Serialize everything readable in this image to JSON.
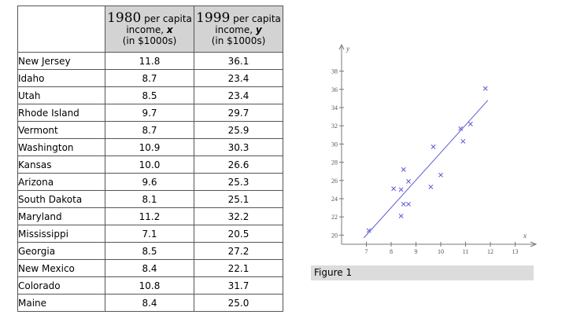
{
  "table": {
    "header": {
      "col1": {
        "year": "1980",
        "rest1": " per capita",
        "line2": "income, ",
        "var": "x",
        "line3": "(in $1000s)"
      },
      "col2": {
        "year": "1999",
        "rest1": " per capita",
        "line2": "income, ",
        "var": "y",
        "line3": "(in $1000s)"
      }
    },
    "rows": [
      {
        "state": "New Jersey",
        "x": "11.8",
        "y": "36.1"
      },
      {
        "state": "Idaho",
        "x": "8.7",
        "y": "23.4"
      },
      {
        "state": "Utah",
        "x": "8.5",
        "y": "23.4"
      },
      {
        "state": "Rhode Island",
        "x": "9.7",
        "y": "29.7"
      },
      {
        "state": "Vermont",
        "x": "8.7",
        "y": "25.9"
      },
      {
        "state": "Washington",
        "x": "10.9",
        "y": "30.3"
      },
      {
        "state": "Kansas",
        "x": "10.0",
        "y": "26.6"
      },
      {
        "state": "Arizona",
        "x": "9.6",
        "y": "25.3"
      },
      {
        "state": "South Dakota",
        "x": "8.1",
        "y": "25.1"
      },
      {
        "state": "Maryland",
        "x": "11.2",
        "y": "32.2"
      },
      {
        "state": "Mississippi",
        "x": "7.1",
        "y": "20.5"
      },
      {
        "state": "Georgia",
        "x": "8.5",
        "y": "27.2"
      },
      {
        "state": "New Mexico",
        "x": "8.4",
        "y": "22.1"
      },
      {
        "state": "Colorado",
        "x": "10.8",
        "y": "31.7"
      },
      {
        "state": "Maine",
        "x": "8.4",
        "y": "25.0"
      }
    ]
  },
  "chart_data": {
    "type": "scatter",
    "title": "",
    "xlabel": "x",
    "ylabel": "y",
    "xlim": [
      6,
      14
    ],
    "ylim": [
      18,
      39
    ],
    "xticks": [
      7,
      8,
      9,
      10,
      11,
      12,
      13
    ],
    "yticks": [
      20,
      22,
      24,
      26,
      28,
      30,
      32,
      34,
      36,
      38
    ],
    "series": [
      {
        "name": "states",
        "marker": "x",
        "color": "#5b5bd6",
        "x": [
          11.8,
          8.7,
          8.5,
          9.7,
          8.7,
          10.9,
          10.0,
          9.6,
          8.1,
          11.2,
          7.1,
          8.5,
          8.4,
          10.8,
          8.4
        ],
        "y": [
          36.1,
          23.4,
          23.4,
          29.7,
          25.9,
          30.3,
          26.6,
          25.3,
          25.1,
          32.2,
          20.5,
          27.2,
          22.1,
          31.7,
          25.0
        ]
      }
    ],
    "regression_line": {
      "x": [
        6.9,
        11.9
      ],
      "y": [
        19.7,
        34.8
      ],
      "color": "#5b5bd6"
    }
  },
  "figure": {
    "caption": "Figure 1"
  }
}
